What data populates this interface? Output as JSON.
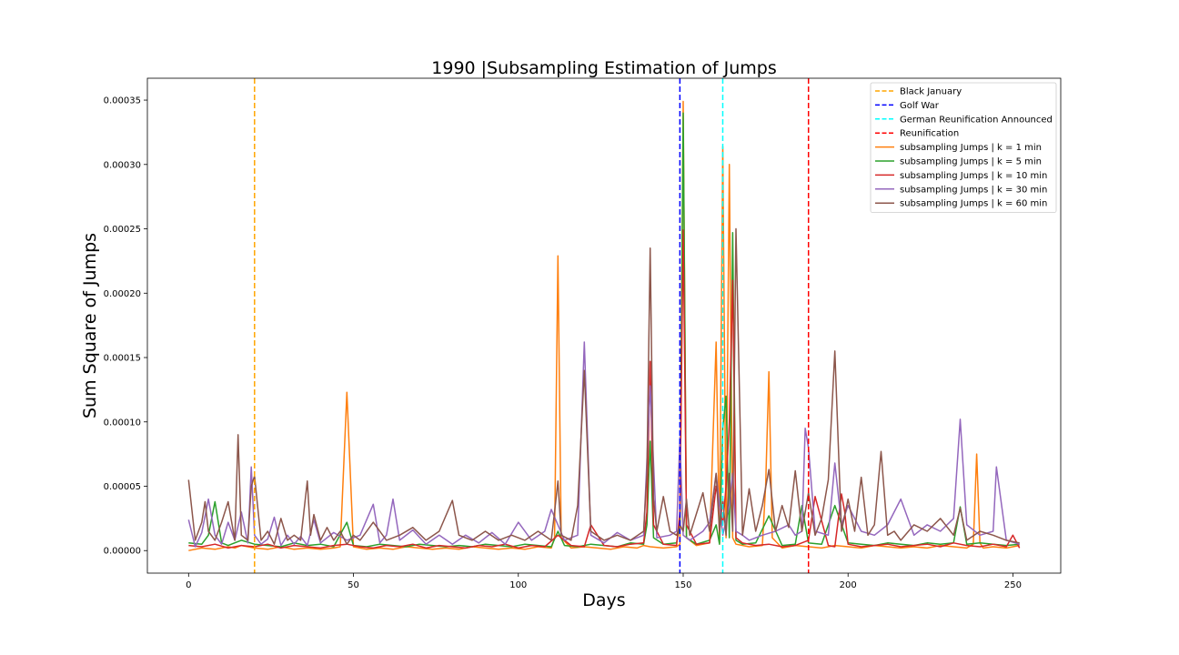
{
  "chart_data": {
    "type": "line",
    "title": "1990 |Subsampling Estimation of Jumps",
    "xlabel": "Days",
    "ylabel": "Sum Square of Jumps",
    "xlim": [
      -12.5,
      264.5
    ],
    "ylim": [
      -1.75e-05,
      0.000367
    ],
    "xticks": [
      0,
      50,
      100,
      150,
      200,
      250
    ],
    "xtick_labels": [
      "0",
      "50",
      "100",
      "150",
      "200",
      "250"
    ],
    "yticks": [
      0,
      5e-05,
      0.0001,
      0.00015,
      0.0002,
      0.00025,
      0.0003,
      0.00035
    ],
    "ytick_labels": [
      "0.00000",
      "0.00005",
      "0.00010",
      "0.00015",
      "0.00020",
      "0.00025",
      "0.00030",
      "0.00035"
    ],
    "grid": false,
    "legend_position": "top-right",
    "events": [
      {
        "name": "Black January",
        "x": 20,
        "color": "#ffa500"
      },
      {
        "name": "Golf War",
        "x": 149,
        "color": "#0000ff"
      },
      {
        "name": "German Reunification Announced",
        "x": 162,
        "color": "#00ffff"
      },
      {
        "name": "Reunification",
        "x": 188,
        "color": "#ff0000"
      }
    ],
    "series": [
      {
        "name": "subsampling Jumps | k = 1 min",
        "color": "#ff7f0e",
        "x": [
          0,
          4,
          8,
          12,
          14,
          16,
          20,
          24,
          28,
          32,
          36,
          40,
          44,
          46,
          48,
          50,
          54,
          58,
          62,
          66,
          70,
          74,
          78,
          82,
          86,
          90,
          94,
          98,
          102,
          106,
          110,
          111,
          112,
          113,
          116,
          120,
          124,
          128,
          132,
          136,
          138,
          140,
          144,
          148,
          149,
          150,
          151,
          154,
          158,
          160,
          161,
          162,
          163,
          164,
          165,
          166,
          170,
          174,
          175,
          176,
          177,
          180,
          184,
          188,
          192,
          196,
          200,
          204,
          208,
          212,
          216,
          220,
          224,
          228,
          232,
          236,
          238,
          239,
          240,
          241,
          244,
          248,
          252
        ],
        "y": [
          0,
          2e-06,
          1e-06,
          3e-06,
          2e-06,
          4e-06,
          2e-06,
          1e-06,
          3e-06,
          1e-06,
          2e-06,
          1e-06,
          2e-06,
          3e-06,
          0.000123,
          3e-06,
          1e-06,
          2e-06,
          1e-06,
          3e-06,
          2e-06,
          1e-06,
          2e-06,
          1e-06,
          3e-06,
          2e-06,
          1e-06,
          2e-06,
          1e-06,
          3e-06,
          2e-06,
          1e-05,
          0.000229,
          1e-05,
          2e-06,
          3e-06,
          2e-06,
          1e-06,
          3e-06,
          2e-06,
          4e-06,
          3e-06,
          2e-06,
          3e-06,
          5e-06,
          0.000349,
          1e-05,
          4e-06,
          6e-06,
          0.000162,
          6e-06,
          0.000314,
          1e-05,
          0.0003,
          1e-05,
          5e-06,
          3e-06,
          4e-06,
          5e-05,
          0.000139,
          1e-05,
          2e-06,
          4e-06,
          3e-06,
          2e-06,
          4e-06,
          3e-06,
          2e-06,
          4e-06,
          3e-06,
          2e-06,
          3e-06,
          2e-06,
          4e-06,
          3e-06,
          2e-06,
          5e-06,
          7.5e-05,
          6e-06,
          2e-06,
          3e-06,
          2e-06,
          4e-06
        ]
      },
      {
        "name": "subsampling Jumps | k = 5 min",
        "color": "#2ca02c",
        "x": [
          0,
          4,
          6,
          8,
          10,
          12,
          16,
          20,
          24,
          28,
          32,
          36,
          40,
          44,
          48,
          50,
          54,
          58,
          62,
          66,
          70,
          74,
          78,
          82,
          86,
          90,
          94,
          98,
          102,
          106,
          110,
          112,
          114,
          118,
          122,
          126,
          130,
          134,
          138,
          139,
          140,
          141,
          144,
          148,
          149,
          150,
          151,
          154,
          158,
          160,
          161,
          162,
          163,
          164,
          165,
          166,
          168,
          172,
          176,
          180,
          184,
          186,
          188,
          192,
          196,
          200,
          204,
          208,
          212,
          216,
          220,
          224,
          228,
          232,
          234,
          236,
          240,
          244,
          248,
          252
        ],
        "y": [
          6e-06,
          5e-06,
          1.2e-05,
          3.8e-05,
          6e-06,
          4e-06,
          8e-06,
          5e-06,
          4e-06,
          3e-06,
          6e-06,
          4e-06,
          5e-06,
          3e-06,
          2.2e-05,
          4e-06,
          3e-06,
          5e-06,
          4e-06,
          3e-06,
          5e-06,
          4e-06,
          3e-06,
          4e-06,
          3e-06,
          5e-06,
          4e-06,
          3e-06,
          5e-06,
          4e-06,
          3e-06,
          1.5e-05,
          4e-06,
          3e-06,
          5e-06,
          4e-06,
          3e-06,
          6e-06,
          5e-06,
          2e-05,
          8.5e-05,
          1e-05,
          5e-06,
          6e-06,
          2e-05,
          0.00034,
          1e-05,
          5e-06,
          8e-06,
          2e-05,
          5e-06,
          9.5e-05,
          0.00012,
          1e-05,
          0.000247,
          8e-06,
          5e-06,
          6e-06,
          2.7e-05,
          4e-06,
          5e-06,
          3.5e-05,
          6e-06,
          5e-06,
          3.5e-05,
          6e-06,
          5e-06,
          4e-06,
          6e-06,
          5e-06,
          4e-06,
          6e-06,
          5e-06,
          6e-06,
          3.4e-05,
          5e-06,
          6e-06,
          5e-06,
          4e-06,
          5e-06
        ]
      },
      {
        "name": "subsampling Jumps | k = 10 min",
        "color": "#d62728",
        "x": [
          0,
          4,
          8,
          12,
          16,
          20,
          24,
          28,
          32,
          36,
          40,
          44,
          48,
          52,
          56,
          60,
          64,
          68,
          72,
          76,
          80,
          84,
          88,
          92,
          96,
          100,
          104,
          108,
          112,
          116,
          120,
          122,
          126,
          130,
          134,
          138,
          139,
          140,
          141,
          144,
          148,
          149,
          150,
          151,
          154,
          158,
          160,
          162,
          163,
          164,
          165,
          166,
          168,
          172,
          176,
          180,
          184,
          188,
          190,
          194,
          196,
          198,
          199,
          200,
          204,
          208,
          212,
          216,
          220,
          224,
          228,
          232,
          236,
          240,
          244,
          248,
          250,
          252
        ],
        "y": [
          4e-06,
          3e-06,
          5e-06,
          2e-06,
          4e-06,
          3e-06,
          5e-06,
          2e-06,
          4e-06,
          3e-06,
          2e-06,
          4e-06,
          5e-06,
          3e-06,
          2e-06,
          4e-06,
          3e-06,
          5e-06,
          2e-06,
          4e-06,
          3e-06,
          2e-06,
          4e-06,
          3e-06,
          5e-06,
          2e-06,
          4e-06,
          3e-06,
          1.2e-05,
          4e-06,
          3e-06,
          2e-05,
          4e-06,
          3e-06,
          5e-06,
          6e-06,
          3e-05,
          0.000147,
          2e-05,
          5e-06,
          4e-06,
          3e-05,
          0.000249,
          2e-05,
          5e-06,
          6e-06,
          5e-05,
          2e-05,
          5e-05,
          0.0001,
          0.00021,
          1e-05,
          6e-06,
          4e-06,
          5e-06,
          3e-06,
          4e-06,
          8e-06,
          4.2e-05,
          4e-06,
          3e-06,
          4.4e-05,
          3e-05,
          5e-06,
          3e-06,
          4e-06,
          5e-06,
          3e-06,
          4e-06,
          5e-06,
          3e-06,
          6e-06,
          4e-06,
          3e-06,
          5e-06,
          3e-06,
          1.2e-05,
          2e-06
        ]
      },
      {
        "name": "subsampling Jumps | k = 30 min",
        "color": "#9467bd",
        "x": [
          0,
          2,
          4,
          6,
          8,
          10,
          12,
          14,
          16,
          18,
          19,
          20,
          22,
          24,
          26,
          28,
          30,
          32,
          34,
          36,
          38,
          40,
          44,
          48,
          52,
          56,
          58,
          60,
          62,
          64,
          68,
          72,
          76,
          80,
          84,
          88,
          92,
          96,
          100,
          104,
          108,
          110,
          114,
          118,
          120,
          122,
          126,
          130,
          134,
          138,
          140,
          142,
          146,
          148,
          149,
          150,
          152,
          156,
          158,
          160,
          162,
          164,
          165,
          166,
          168,
          170,
          174,
          178,
          182,
          184,
          186,
          187,
          188,
          190,
          194,
          196,
          198,
          200,
          204,
          208,
          212,
          216,
          220,
          224,
          228,
          232,
          234,
          236,
          240,
          244,
          245,
          248,
          252
        ],
        "y": [
          2.4e-05,
          3e-06,
          1.4e-05,
          4e-05,
          1.2e-05,
          5e-06,
          2.2e-05,
          8e-06,
          3e-05,
          6e-06,
          6.5e-05,
          1.2e-05,
          5e-06,
          9e-06,
          2.6e-05,
          4e-06,
          1.2e-05,
          5e-06,
          1.1e-05,
          4e-06,
          2.4e-05,
          6e-06,
          1.4e-05,
          8e-06,
          1.2e-05,
          3.6e-05,
          6e-06,
          1.2e-05,
          4e-05,
          8e-06,
          1.6e-05,
          5e-06,
          1.2e-05,
          5e-06,
          1.2e-05,
          6e-06,
          1.4e-05,
          5e-06,
          2.2e-05,
          8e-06,
          1.5e-05,
          3.2e-05,
          8e-06,
          1.2e-05,
          0.000162,
          1.2e-05,
          6e-06,
          1.4e-05,
          8e-06,
          1.2e-05,
          0.000128,
          1e-05,
          1.2e-05,
          1.5e-05,
          8.8e-05,
          1.2e-05,
          8e-06,
          1.5e-05,
          2.2e-05,
          6e-05,
          1.2e-05,
          3.5e-05,
          6e-05,
          1.5e-05,
          1.2e-05,
          8e-06,
          1.2e-05,
          1.5e-05,
          2e-05,
          1.2e-05,
          1.5e-05,
          9.5e-05,
          8e-05,
          1.5e-05,
          1.2e-05,
          6.8e-05,
          2e-05,
          3.5e-05,
          1.5e-05,
          1.2e-05,
          2e-05,
          4e-05,
          1.2e-05,
          2e-05,
          1.5e-05,
          2.5e-05,
          0.000102,
          2e-05,
          1.2e-05,
          1.5e-05,
          6.5e-05,
          8e-06,
          5e-06
        ]
      },
      {
        "name": "subsampling Jumps | k = 60 min",
        "color": "#8c564b",
        "x": [
          0,
          2,
          4,
          5,
          6,
          8,
          10,
          12,
          14,
          15,
          16,
          18,
          19,
          20,
          22,
          24,
          26,
          28,
          30,
          32,
          34,
          36,
          37,
          38,
          40,
          42,
          44,
          46,
          48,
          50,
          52,
          56,
          60,
          64,
          68,
          72,
          76,
          80,
          82,
          86,
          90,
          94,
          98,
          102,
          106,
          110,
          111,
          112,
          113,
          116,
          118,
          120,
          122,
          126,
          130,
          134,
          138,
          139,
          140,
          141,
          142,
          144,
          146,
          148,
          149,
          150,
          151,
          152,
          156,
          158,
          160,
          161,
          162,
          163,
          164,
          165,
          166,
          168,
          170,
          172,
          174,
          176,
          178,
          180,
          182,
          184,
          186,
          188,
          190,
          192,
          194,
          196,
          198,
          200,
          202,
          204,
          206,
          208,
          210,
          212,
          214,
          216,
          220,
          224,
          228,
          232,
          234,
          236,
          240,
          244,
          248,
          252
        ],
        "y": [
          5.5e-05,
          8e-06,
          2.2e-05,
          3.8e-05,
          1.5e-05,
          8e-06,
          2.2e-05,
          3.8e-05,
          8e-06,
          9e-05,
          1.2e-05,
          8e-06,
          5e-05,
          5.8e-05,
          8e-06,
          1.5e-05,
          5e-06,
          2.5e-05,
          8e-06,
          1.2e-05,
          8e-06,
          5.4e-05,
          1.2e-05,
          2.8e-05,
          8e-06,
          1.8e-05,
          8e-06,
          1.5e-05,
          5e-06,
          1.2e-05,
          8e-06,
          2.2e-05,
          8e-06,
          1.2e-05,
          1.8e-05,
          8e-06,
          1.5e-05,
          3.9e-05,
          1.2e-05,
          8e-06,
          1.5e-05,
          8e-06,
          1.2e-05,
          8e-06,
          1.5e-05,
          8e-06,
          3e-05,
          5.4e-05,
          1.2e-05,
          8e-06,
          3.5e-05,
          0.00014,
          1.5e-05,
          8e-06,
          1.2e-05,
          8e-06,
          1.5e-05,
          6e-05,
          0.000235,
          4e-05,
          1.5e-05,
          4.2e-05,
          1.5e-05,
          1.2e-05,
          2e-05,
          1.5e-05,
          4e-05,
          1.2e-05,
          4.5e-05,
          1.5e-05,
          6e-05,
          1.5e-05,
          4e-05,
          1.2e-05,
          6e-05,
          1.5e-05,
          0.00025,
          1.2e-05,
          4.8e-05,
          1.5e-05,
          3.5e-05,
          6.3e-05,
          1.5e-05,
          3.5e-05,
          1.8e-05,
          6.2e-05,
          1.5e-05,
          4.5e-05,
          1.2e-05,
          2.5e-05,
          5.5e-05,
          0.000155,
          1.5e-05,
          4e-05,
          1.5e-05,
          5.7e-05,
          1.2e-05,
          2e-05,
          7.7e-05,
          1.2e-05,
          1.5e-05,
          8e-06,
          2e-05,
          1.5e-05,
          2.5e-05,
          1.2e-05,
          3.3e-05,
          8e-06,
          1.5e-05,
          1.2e-05,
          8e-06,
          6e-06
        ]
      }
    ]
  }
}
